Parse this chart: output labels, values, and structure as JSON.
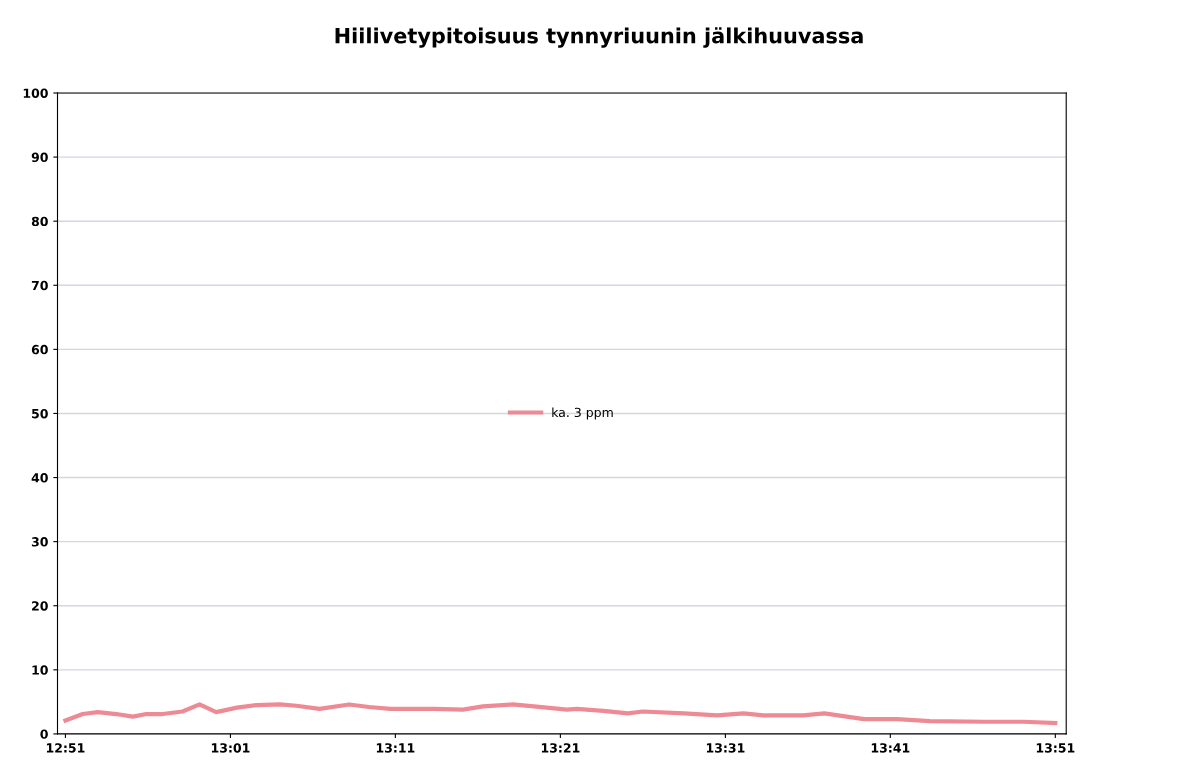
{
  "chart_data": {
    "type": "line",
    "title": "Hiilivetypitoisuus tynnyriuunin jälkihuuvassa",
    "xlim": [
      12.842,
      13.861
    ],
    "xticks": [
      {
        "value": 12.85,
        "label": "12:51"
      },
      {
        "value": 13.0167,
        "label": "13:01"
      },
      {
        "value": 13.1833,
        "label": "13:11"
      },
      {
        "value": 13.35,
        "label": "13:21"
      },
      {
        "value": 13.5167,
        "label": "13:31"
      },
      {
        "value": 13.6833,
        "label": "13:41"
      },
      {
        "value": 13.85,
        "label": "13:51"
      }
    ],
    "ylim": [
      0,
      100
    ],
    "yticks": [
      0,
      10,
      20,
      30,
      40,
      50,
      60,
      70,
      80,
      90,
      100
    ],
    "grid": "y",
    "legend": "center",
    "marker": "none",
    "line_style": "solid",
    "series": [
      {
        "name": "ka. 3 ppm",
        "color": "#ee8a94",
        "x": [
          12.85,
          12.8675,
          12.8827,
          12.9012,
          12.9182,
          12.9317,
          12.9483,
          12.9683,
          12.9855,
          13.0023,
          13.0233,
          13.0433,
          13.0667,
          13.0833,
          13.1067,
          13.1367,
          13.1567,
          13.1783,
          13.2217,
          13.2517,
          13.2717,
          13.3017,
          13.3233,
          13.3567,
          13.3667,
          13.3933,
          13.4183,
          13.4333,
          13.475,
          13.5083,
          13.535,
          13.555,
          13.595,
          13.6167,
          13.6567,
          13.69,
          13.7233,
          13.7783,
          13.8183,
          13.85
        ],
        "values": [
          2.1,
          3.1,
          3.4,
          3.1,
          2.7,
          3.1,
          3.1,
          3.5,
          4.6,
          3.4,
          4.1,
          4.5,
          4.6,
          4.4,
          3.9,
          4.6,
          4.2,
          3.9,
          3.9,
          3.8,
          4.3,
          4.6,
          4.3,
          3.8,
          3.9,
          3.6,
          3.2,
          3.5,
          3.2,
          2.9,
          3.2,
          2.9,
          2.9,
          3.2,
          2.3,
          2.3,
          2.0,
          1.9,
          1.9,
          1.7
        ]
      }
    ]
  }
}
